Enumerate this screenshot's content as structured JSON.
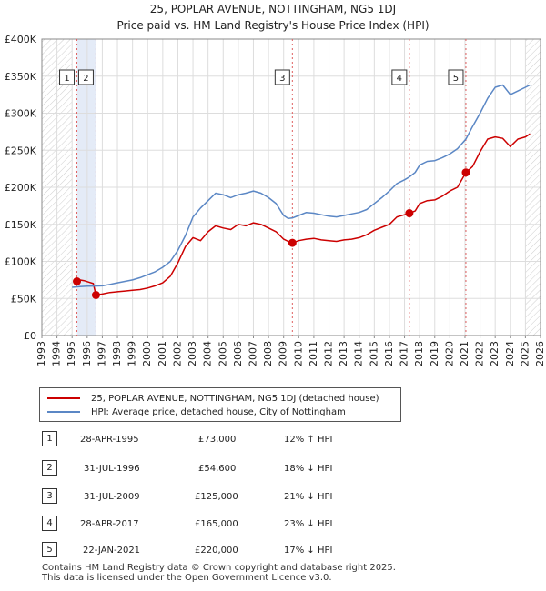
{
  "title_line1": "25, POPLAR AVENUE, NOTTINGHAM, NG5 1DJ",
  "title_line2": "Price paid vs. HM Land Registry's House Price Index (HPI)",
  "chart_data": {
    "type": "line",
    "title": "25, POPLAR AVENUE, NOTTINGHAM, NG5 1DJ - Price paid vs. HM Land Registry's House Price Index (HPI)",
    "xlabel": "",
    "ylabel": "",
    "xlim": [
      1993,
      2026
    ],
    "ylim": [
      0,
      400000
    ],
    "x_ticks": [
      1993,
      1994,
      1995,
      1996,
      1997,
      1998,
      1999,
      2000,
      2001,
      2002,
      2003,
      2004,
      2005,
      2006,
      2007,
      2008,
      2009,
      2010,
      2011,
      2012,
      2013,
      2014,
      2015,
      2016,
      2017,
      2018,
      2019,
      2020,
      2021,
      2022,
      2023,
      2024,
      2025,
      2026
    ],
    "y_ticks": [
      {
        "value": 0,
        "label": "£0"
      },
      {
        "value": 50000,
        "label": "£50K"
      },
      {
        "value": 100000,
        "label": "£100K"
      },
      {
        "value": 150000,
        "label": "£150K"
      },
      {
        "value": 200000,
        "label": "£200K"
      },
      {
        "value": 250000,
        "label": "£250K"
      },
      {
        "value": 300000,
        "label": "£300K"
      },
      {
        "value": 350000,
        "label": "£350K"
      },
      {
        "value": 400000,
        "label": "£400K"
      }
    ],
    "grid": true,
    "hatched_before": 1995.0,
    "hatched_after": 2025.0,
    "shaded_period": [
      1995.32,
      1996.58
    ],
    "series": [
      {
        "name": "25, POPLAR AVENUE, NOTTINGHAM, NG5 1DJ (detached house)",
        "color": "#cc0000",
        "x": [
          1995.32,
          1995.5,
          1995.8,
          1996.1,
          1996.4,
          1996.58,
          1997.0,
          1997.5,
          1998.0,
          1998.5,
          1999.0,
          1999.5,
          2000.0,
          2000.5,
          2001.0,
          2001.5,
          2002.0,
          2002.5,
          2003.0,
          2003.5,
          2004.0,
          2004.5,
          2005.0,
          2005.5,
          2006.0,
          2006.5,
          2007.0,
          2007.5,
          2008.0,
          2008.5,
          2009.0,
          2009.3,
          2009.58,
          2010.0,
          2010.5,
          2011.0,
          2011.5,
          2012.0,
          2012.5,
          2013.0,
          2013.5,
          2014.0,
          2014.5,
          2015.0,
          2015.5,
          2016.0,
          2016.5,
          2017.0,
          2017.32,
          2017.7,
          2018.0,
          2018.5,
          2019.0,
          2019.5,
          2020.0,
          2020.5,
          2021.06,
          2021.5,
          2022.0,
          2022.5,
          2023.0,
          2023.5,
          2024.0,
          2024.5,
          2025.0,
          2025.3
        ],
        "values": [
          73000,
          75000,
          74000,
          72000,
          70000,
          54600,
          56000,
          58000,
          59000,
          60000,
          61000,
          62000,
          64000,
          67000,
          71000,
          80000,
          98000,
          120000,
          132000,
          128000,
          140000,
          148000,
          145000,
          143000,
          150000,
          148000,
          152000,
          150000,
          145000,
          140000,
          130000,
          127000,
          125000,
          128000,
          130000,
          131000,
          129000,
          128000,
          127000,
          129000,
          130000,
          132000,
          136000,
          142000,
          146000,
          150000,
          160000,
          163000,
          165000,
          168000,
          178000,
          182000,
          183000,
          188000,
          195000,
          200000,
          220000,
          228000,
          248000,
          265000,
          268000,
          266000,
          255000,
          265000,
          268000,
          272000
        ]
      },
      {
        "name": "HPI: Average price, detached house, City of Nottingham",
        "color": "#5b87c5",
        "x": [
          1995.0,
          1995.5,
          1996.0,
          1996.5,
          1997.0,
          1997.5,
          1998.0,
          1998.5,
          1999.0,
          1999.5,
          2000.0,
          2000.5,
          2001.0,
          2001.5,
          2002.0,
          2002.5,
          2003.0,
          2003.5,
          2004.0,
          2004.5,
          2005.0,
          2005.5,
          2006.0,
          2006.5,
          2007.0,
          2007.5,
          2008.0,
          2008.5,
          2009.0,
          2009.3,
          2009.58,
          2010.0,
          2010.5,
          2011.0,
          2011.5,
          2012.0,
          2012.5,
          2013.0,
          2013.5,
          2014.0,
          2014.5,
          2015.0,
          2015.5,
          2016.0,
          2016.5,
          2017.0,
          2017.32,
          2017.7,
          2018.0,
          2018.5,
          2019.0,
          2019.5,
          2020.0,
          2020.5,
          2021.06,
          2021.5,
          2022.0,
          2022.5,
          2023.0,
          2023.5,
          2024.0,
          2024.5,
          2025.0,
          2025.3
        ],
        "values": [
          65000,
          66000,
          66500,
          66700,
          67000,
          69000,
          71000,
          73000,
          75000,
          78000,
          82000,
          86000,
          92000,
          100000,
          115000,
          135000,
          160000,
          172000,
          182000,
          192000,
          190000,
          186000,
          190000,
          192000,
          195000,
          192000,
          186000,
          178000,
          162000,
          158000,
          158500,
          162000,
          166000,
          165000,
          163000,
          161000,
          160000,
          162000,
          164000,
          166000,
          170000,
          178000,
          186000,
          195000,
          205000,
          210000,
          214000,
          220000,
          230000,
          235000,
          236000,
          240000,
          245000,
          252000,
          265000,
          282000,
          300000,
          320000,
          335000,
          338000,
          325000,
          330000,
          335000,
          338000
        ]
      }
    ],
    "sales": [
      {
        "num": "1",
        "x": 1995.32,
        "value": 73000,
        "date": "28-APR-1995",
        "price": "£73,000",
        "hpi": "12% ↑ HPI"
      },
      {
        "num": "2",
        "x": 1996.58,
        "value": 54600,
        "date": "31-JUL-1996",
        "price": "£54,600",
        "hpi": "18% ↓ HPI"
      },
      {
        "num": "3",
        "x": 2009.58,
        "value": 125000,
        "date": "31-JUL-2009",
        "price": "£125,000",
        "hpi": "21% ↓ HPI"
      },
      {
        "num": "4",
        "x": 2017.32,
        "value": 165000,
        "date": "28-APR-2017",
        "price": "£165,000",
        "hpi": "23% ↓ HPI"
      },
      {
        "num": "5",
        "x": 2021.06,
        "value": 220000,
        "date": "22-JAN-2021",
        "price": "£220,000",
        "hpi": "17% ↓ HPI"
      }
    ]
  },
  "legend": {
    "items": [
      {
        "label": "25, POPLAR AVENUE, NOTTINGHAM, NG5 1DJ (detached house)",
        "color": "#cc0000"
      },
      {
        "label": "HPI: Average price, detached house, City of Nottingham",
        "color": "#5b87c5"
      }
    ]
  },
  "footer": {
    "line1": "Contains HM Land Registry data © Crown copyright and database right 2025.",
    "line2": "This data is licensed under the Open Government Licence v3.0."
  }
}
